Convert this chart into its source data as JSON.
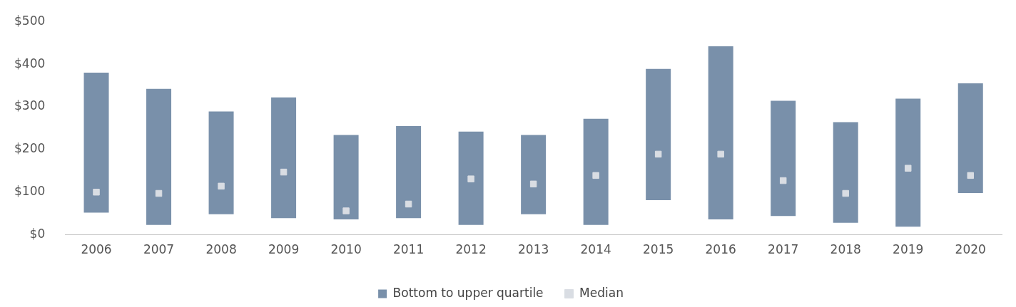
{
  "chart_data": {
    "type": "bar",
    "categories": [
      "2006",
      "2007",
      "2008",
      "2009",
      "2010",
      "2011",
      "2012",
      "2013",
      "2014",
      "2015",
      "2016",
      "2017",
      "2018",
      "2019",
      "2020"
    ],
    "ylim": [
      0,
      500
    ],
    "yticks": [
      {
        "value": 0,
        "label": "$0"
      },
      {
        "value": 100,
        "label": "$100"
      },
      {
        "value": 200,
        "label": "$200"
      },
      {
        "value": 300,
        "label": "$300"
      },
      {
        "value": 400,
        "label": "$400"
      },
      {
        "value": 500,
        "label": "$500"
      }
    ],
    "grid": false,
    "legend": "bottom",
    "series": [
      {
        "name": "Bottom to upper quartile",
        "color": "#7990aa",
        "base": [
          52,
          23,
          48,
          39,
          36,
          39,
          23,
          48,
          23,
          81,
          36,
          44,
          28,
          19,
          98
        ],
        "values": [
          328,
          319,
          241,
          283,
          198,
          216,
          219,
          186,
          249,
          308,
          406,
          270,
          236,
          300,
          257
        ]
      },
      {
        "name": "Median",
        "type": "scatter",
        "marker": "square",
        "color": "#d9dde3",
        "values": [
          100,
          97,
          114,
          147,
          56,
          72,
          131,
          119,
          139,
          189,
          189,
          127,
          97,
          156,
          139
        ]
      }
    ]
  }
}
